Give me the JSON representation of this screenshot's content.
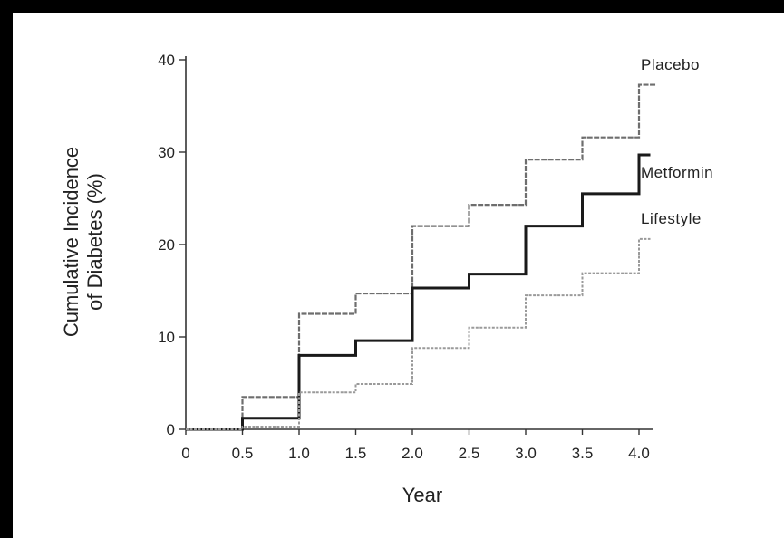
{
  "chart_data": {
    "type": "line",
    "step": true,
    "xlabel": "Year",
    "ylabel": [
      "Cumulative Incidence",
      "of Diabetes (%)"
    ],
    "xlim": [
      0,
      4.0
    ],
    "ylim": [
      0,
      40
    ],
    "xticks": [
      0,
      0.5,
      1.0,
      1.5,
      2.0,
      2.5,
      3.0,
      3.5,
      4.0
    ],
    "xtick_labels": [
      "0",
      "0.5",
      "1.0",
      "1.5",
      "2.0",
      "2.5",
      "3.0",
      "3.5",
      "4.0"
    ],
    "yticks": [
      0,
      10,
      20,
      30,
      40
    ],
    "ytick_labels": [
      "0",
      "10",
      "20",
      "30",
      "40"
    ],
    "grid": false,
    "legend": "direct labels at right end of lines",
    "series": [
      {
        "name": "Placebo",
        "color": "#6e6e6e",
        "x": [
          0,
          0.5,
          1.0,
          1.5,
          2.0,
          2.5,
          3.0,
          3.5,
          4.0,
          4.15
        ],
        "y": [
          0,
          3.5,
          12.5,
          14.7,
          22.0,
          24.3,
          29.2,
          31.6,
          37.3,
          37.3
        ]
      },
      {
        "name": "Metformin",
        "color": "#1a1a1a",
        "x": [
          0,
          0.5,
          1.0,
          1.5,
          2.0,
          2.5,
          3.0,
          3.5,
          4.0,
          4.1
        ],
        "y": [
          0,
          1.2,
          8.0,
          9.6,
          15.3,
          16.8,
          22.0,
          25.5,
          29.7,
          29.7
        ]
      },
      {
        "name": "Lifestyle",
        "color": "#9a9a9a",
        "x": [
          0,
          0.5,
          1.0,
          1.5,
          2.0,
          2.5,
          3.0,
          3.5,
          4.0,
          4.1
        ],
        "y": [
          0,
          0.3,
          4.0,
          4.9,
          8.8,
          11.0,
          14.5,
          16.9,
          20.6,
          20.6
        ]
      }
    ]
  }
}
